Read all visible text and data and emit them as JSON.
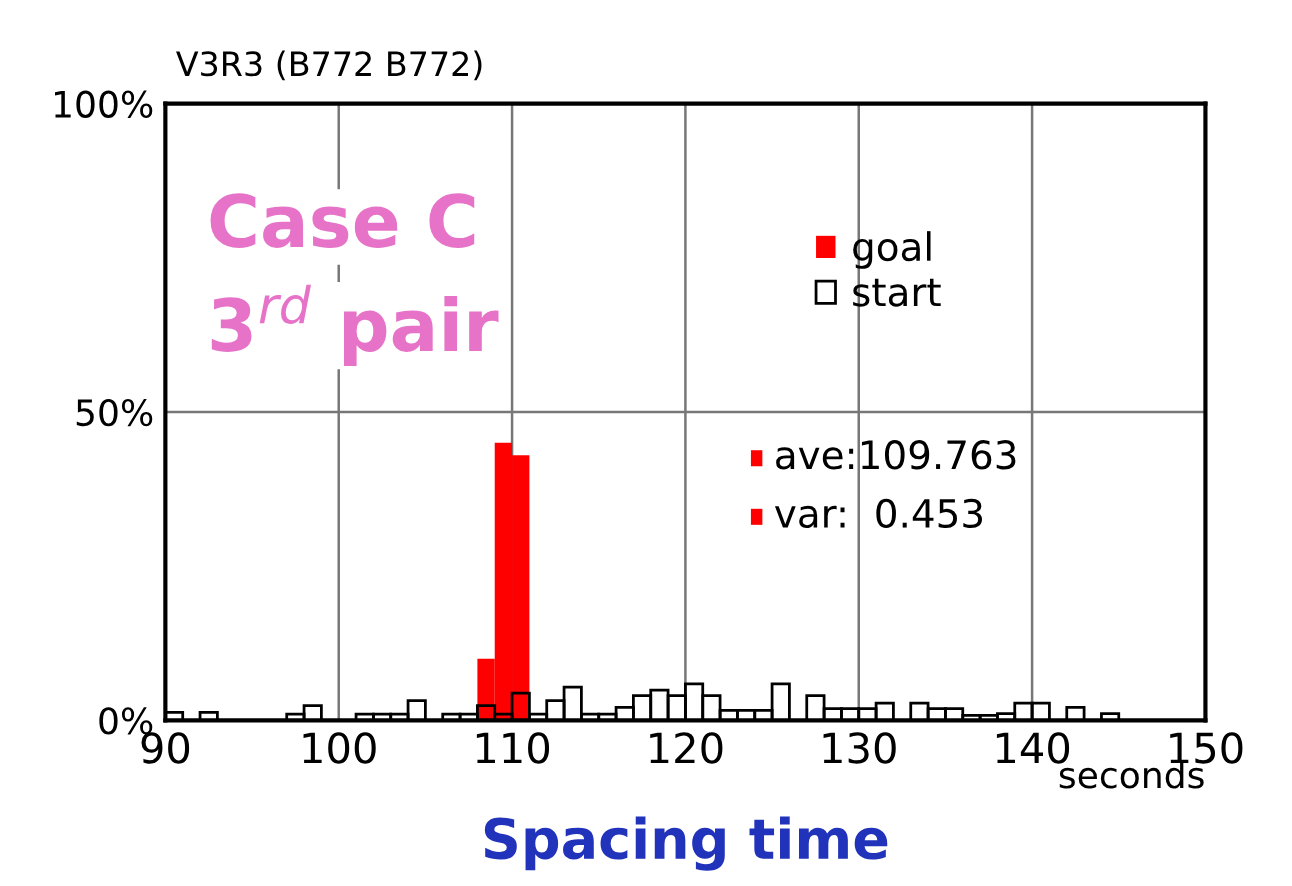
{
  "chart_data": {
    "type": "histogram",
    "title": "V3R3 (B772 B772)",
    "xlabel": "seconds",
    "bins": [
      90,
      91,
      92,
      93,
      94,
      95,
      96,
      97,
      98,
      99,
      100,
      101,
      102,
      103,
      104,
      105,
      106,
      107,
      108,
      109,
      110,
      111,
      112,
      113,
      114,
      115,
      116,
      117,
      118,
      119,
      120,
      121,
      122,
      123,
      124,
      125,
      126,
      127,
      128,
      129,
      130,
      131,
      132,
      133,
      134,
      135,
      136,
      137,
      138,
      139,
      140,
      141,
      142,
      143,
      144,
      145,
      146,
      147,
      148,
      149,
      150
    ],
    "series": [
      {
        "name": "goal",
        "color": "#ff0000",
        "values": [
          null,
          null,
          null,
          null,
          null,
          null,
          null,
          null,
          null,
          null,
          null,
          null,
          null,
          null,
          null,
          null,
          null,
          null,
          10,
          45,
          43,
          null,
          null,
          null,
          null,
          null,
          null,
          null,
          null,
          null,
          null,
          null,
          null,
          null,
          null,
          null,
          null,
          null,
          null,
          null,
          null,
          null,
          null,
          null,
          null,
          null,
          null,
          null,
          null,
          null,
          null,
          null,
          null,
          null,
          null,
          null,
          null,
          null,
          null,
          null
        ]
      },
      {
        "name": "start",
        "color": "#000000",
        "values": [
          1.3,
          0,
          1.3,
          0,
          0,
          0,
          0,
          1,
          2.4,
          0,
          0,
          1,
          1,
          1,
          3.2,
          0,
          1,
          1,
          2.4,
          1,
          4.4,
          1,
          3.2,
          5.4,
          1,
          1,
          2.1,
          4,
          4.9,
          4,
          5.9,
          4,
          1.6,
          1.6,
          1.6,
          5.9,
          0,
          4,
          1.9,
          1.9,
          1.9,
          2.8,
          0,
          2.8,
          1.9,
          1.9,
          0.8,
          0.8,
          1.1,
          2.8,
          2.8,
          0,
          2.1,
          0,
          1.1,
          0,
          0,
          0,
          0,
          0
        ]
      }
    ],
    "xlim": [
      90,
      150
    ],
    "xticks": [
      90,
      100,
      110,
      120,
      130,
      140,
      150
    ],
    "ylim": [
      0,
      100
    ],
    "yticks": [
      {
        "value": 0,
        "label": "0%"
      },
      {
        "value": 50,
        "label": "50%"
      },
      {
        "value": 100,
        "label": "100%"
      }
    ],
    "grid": true,
    "legend": "top right",
    "annotations": [
      "Case C",
      "3$^{rd}$ pair",
      "ave:109.763",
      "var:  0.453",
      "Spacing time"
    ]
  }
}
